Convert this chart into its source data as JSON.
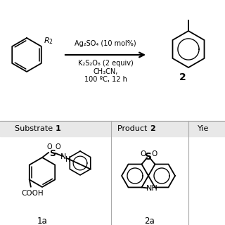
{
  "bg_color": "#ffffff",
  "lc": "#000000",
  "lw": 1.3,
  "arrow_line1": "Ag₂SO₄ (10 mol%)",
  "arrow_line2": "K₂S₂O₈ (2 equiv)",
  "arrow_line3": "CH₃CN,",
  "arrow_line4": "100 ºC, 12 h",
  "prod_num": "2",
  "hdr_substrate": "Substrate ",
  "hdr_substrate_bold": "1",
  "hdr_product": "Product ",
  "hdr_product_bold": "2",
  "hdr_yield": "Yie",
  "lbl_1a": "1a",
  "lbl_2a": "2a",
  "gray_bg": "#e8e8e8",
  "div_color": "#aaaaaa"
}
